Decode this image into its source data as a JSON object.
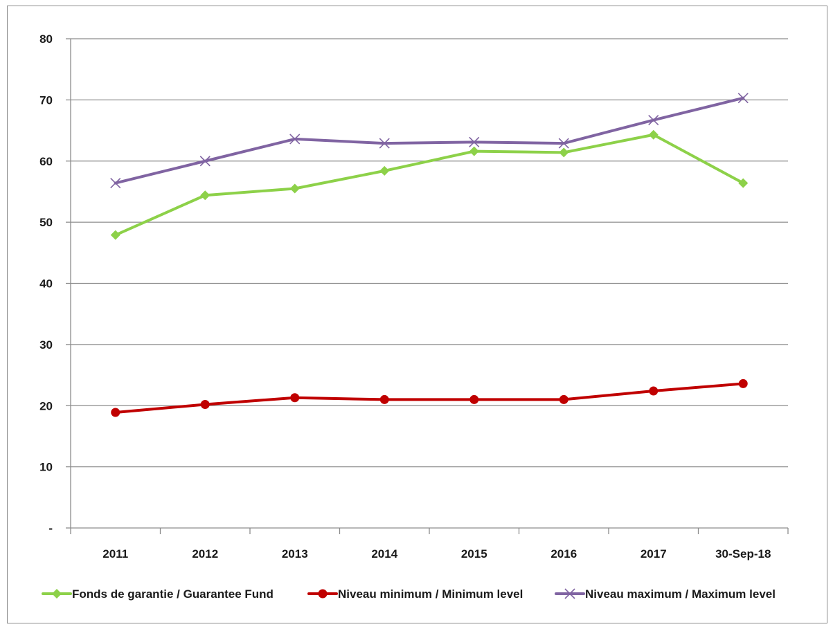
{
  "chart_data": {
    "type": "line",
    "title": "",
    "xlabel": "",
    "ylabel": "",
    "categories": [
      "2011",
      "2012",
      "2013",
      "2014",
      "2015",
      "2016",
      "2017",
      "30-Sep-18"
    ],
    "ylim": [
      0,
      80
    ],
    "yticks": [
      {
        "value": 0,
        "label": "-"
      },
      {
        "value": 10,
        "label": "10"
      },
      {
        "value": 20,
        "label": "20"
      },
      {
        "value": 30,
        "label": "30"
      },
      {
        "value": 40,
        "label": "40"
      },
      {
        "value": 50,
        "label": "50"
      },
      {
        "value": 60,
        "label": "60"
      },
      {
        "value": 70,
        "label": "70"
      },
      {
        "value": 80,
        "label": "80"
      }
    ],
    "grid": true,
    "legend_position": "bottom",
    "series": [
      {
        "name": "Fonds de garantie / Guarantee Fund",
        "color": "#8dd149",
        "marker": "diamond",
        "values": [
          47.9,
          54.4,
          55.5,
          58.4,
          61.6,
          61.4,
          64.3,
          56.4
        ]
      },
      {
        "name": "Niveau minimum / Minimum level",
        "color": "#c00000",
        "marker": "circle",
        "values": [
          18.9,
          20.2,
          21.3,
          21.0,
          21.0,
          21.0,
          22.4,
          23.6
        ]
      },
      {
        "name": "Niveau maximum / Maximum level",
        "color": "#8064a2",
        "marker": "x",
        "values": [
          56.4,
          60.0,
          63.6,
          62.9,
          63.1,
          62.9,
          66.7,
          70.3
        ]
      }
    ]
  }
}
